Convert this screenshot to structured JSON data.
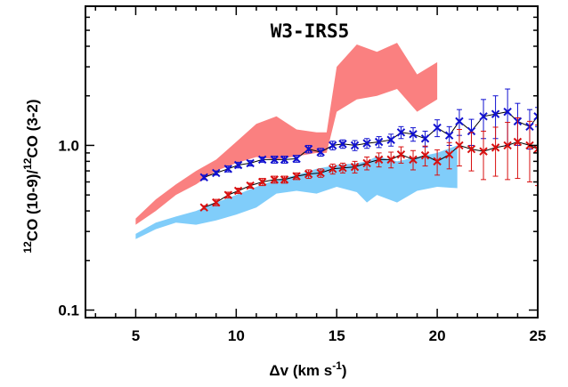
{
  "chart_data": {
    "type": "line",
    "title": "W3-IRS5",
    "xlabel": {
      "pre": "Δv (km s",
      "sup": "-1",
      "post": ")"
    },
    "ylabel": {
      "sup1": "12",
      "mid1": "CO (10-9)/",
      "sup2": "12",
      "mid2": "CO (3-2)"
    },
    "xlim": [
      2.5,
      25
    ],
    "ylim": [
      0.09,
      7
    ],
    "yscale": "log",
    "x_ticks": [
      5,
      10,
      15,
      20,
      25
    ],
    "x_tick_labels": [
      "5",
      "10",
      "15",
      "20",
      "25"
    ],
    "y_ticks": [
      0.1,
      1.0
    ],
    "y_tick_labels": [
      "0.1",
      "1.0"
    ],
    "x_minor_ticks": [
      3,
      4,
      6,
      7,
      8,
      9,
      11,
      12,
      13,
      14,
      16,
      17,
      18,
      19,
      21,
      22,
      23,
      24
    ],
    "y_minor_ticks": [
      0.2,
      0.3,
      0.4,
      0.5,
      0.6,
      0.7,
      0.8,
      0.9,
      2,
      3,
      4,
      5,
      6
    ],
    "bands": [
      {
        "color": "#fa8080",
        "x": [
          5.0,
          6.0,
          7.0,
          8.0,
          9.0,
          10.0,
          11.0,
          12.0,
          13.0,
          14.0,
          14.5,
          15.0,
          16.0,
          17.0,
          18.0,
          19.0,
          20.0
        ],
        "lower": [
          0.33,
          0.4,
          0.5,
          0.58,
          0.7,
          0.78,
          0.85,
          0.82,
          0.86,
          0.9,
          0.9,
          1.6,
          1.9,
          2.0,
          2.2,
          1.6,
          1.9
        ],
        "upper": [
          0.36,
          0.47,
          0.58,
          0.7,
          0.82,
          1.05,
          1.35,
          1.5,
          1.25,
          1.2,
          1.2,
          3.0,
          4.1,
          3.7,
          4.2,
          2.7,
          3.2
        ]
      },
      {
        "color": "#80cdfa",
        "x": [
          5.0,
          6.0,
          7.0,
          8.0,
          9.0,
          10.0,
          11.0,
          12.0,
          13.0,
          14.0,
          15.0,
          16.0,
          16.5,
          17.0,
          18.0,
          19.0,
          20.0,
          21.0
        ],
        "lower": [
          0.27,
          0.31,
          0.34,
          0.33,
          0.35,
          0.38,
          0.42,
          0.51,
          0.53,
          0.51,
          0.56,
          0.52,
          0.45,
          0.5,
          0.45,
          0.53,
          0.56,
          0.55
        ],
        "upper": [
          0.29,
          0.34,
          0.37,
          0.4,
          0.45,
          0.5,
          0.56,
          0.62,
          0.66,
          0.72,
          0.76,
          0.78,
          0.8,
          0.86,
          0.8,
          0.85,
          0.9,
          1.0
        ]
      }
    ],
    "series": [
      {
        "color": "#1010d0",
        "x": [
          8.4,
          9.0,
          9.6,
          10.1,
          10.7,
          11.3,
          11.9,
          12.4,
          13.0,
          13.6,
          14.2,
          14.8,
          15.3,
          15.9,
          16.5,
          17.1,
          17.7,
          18.2,
          18.8,
          19.4,
          20.0,
          20.6,
          21.1,
          21.7,
          22.3,
          22.9,
          23.5,
          24.0,
          24.6,
          25.0
        ],
        "y": [
          0.64,
          0.68,
          0.72,
          0.76,
          0.78,
          0.82,
          0.82,
          0.82,
          0.83,
          0.95,
          0.91,
          1.0,
          1.02,
          1.0,
          1.03,
          1.05,
          1.08,
          1.2,
          1.17,
          1.1,
          1.28,
          1.15,
          1.4,
          1.22,
          1.5,
          1.55,
          1.6,
          1.4,
          1.3,
          1.5
        ],
        "err": [
          0.02,
          0.02,
          0.03,
          0.03,
          0.03,
          0.03,
          0.04,
          0.04,
          0.04,
          0.05,
          0.05,
          0.06,
          0.06,
          0.07,
          0.07,
          0.08,
          0.09,
          0.1,
          0.11,
          0.12,
          0.15,
          0.15,
          0.25,
          0.22,
          0.4,
          0.45,
          0.6,
          0.4,
          0.35,
          0.2
        ]
      },
      {
        "color": "#d81010",
        "x": [
          8.4,
          9.0,
          9.6,
          10.1,
          10.7,
          11.3,
          11.9,
          12.4,
          13.0,
          13.6,
          14.2,
          14.8,
          15.3,
          15.9,
          16.5,
          17.1,
          17.7,
          18.2,
          18.8,
          19.4,
          20.0,
          20.6,
          21.1,
          21.7,
          22.3,
          22.9,
          23.5,
          24.0,
          24.6,
          25.0
        ],
        "y": [
          0.42,
          0.45,
          0.5,
          0.53,
          0.57,
          0.6,
          0.62,
          0.62,
          0.65,
          0.67,
          0.68,
          0.72,
          0.73,
          0.74,
          0.78,
          0.82,
          0.82,
          0.88,
          0.82,
          0.87,
          0.8,
          0.88,
          1.0,
          0.95,
          0.92,
          0.97,
          1.0,
          1.05,
          1.0,
          0.95
        ],
        "err": [
          0.01,
          0.02,
          0.02,
          0.02,
          0.02,
          0.03,
          0.03,
          0.03,
          0.03,
          0.04,
          0.04,
          0.05,
          0.05,
          0.06,
          0.07,
          0.08,
          0.09,
          0.1,
          0.11,
          0.12,
          0.14,
          0.16,
          0.25,
          0.25,
          0.3,
          0.32,
          0.38,
          0.42,
          0.4,
          0.38
        ]
      }
    ]
  }
}
